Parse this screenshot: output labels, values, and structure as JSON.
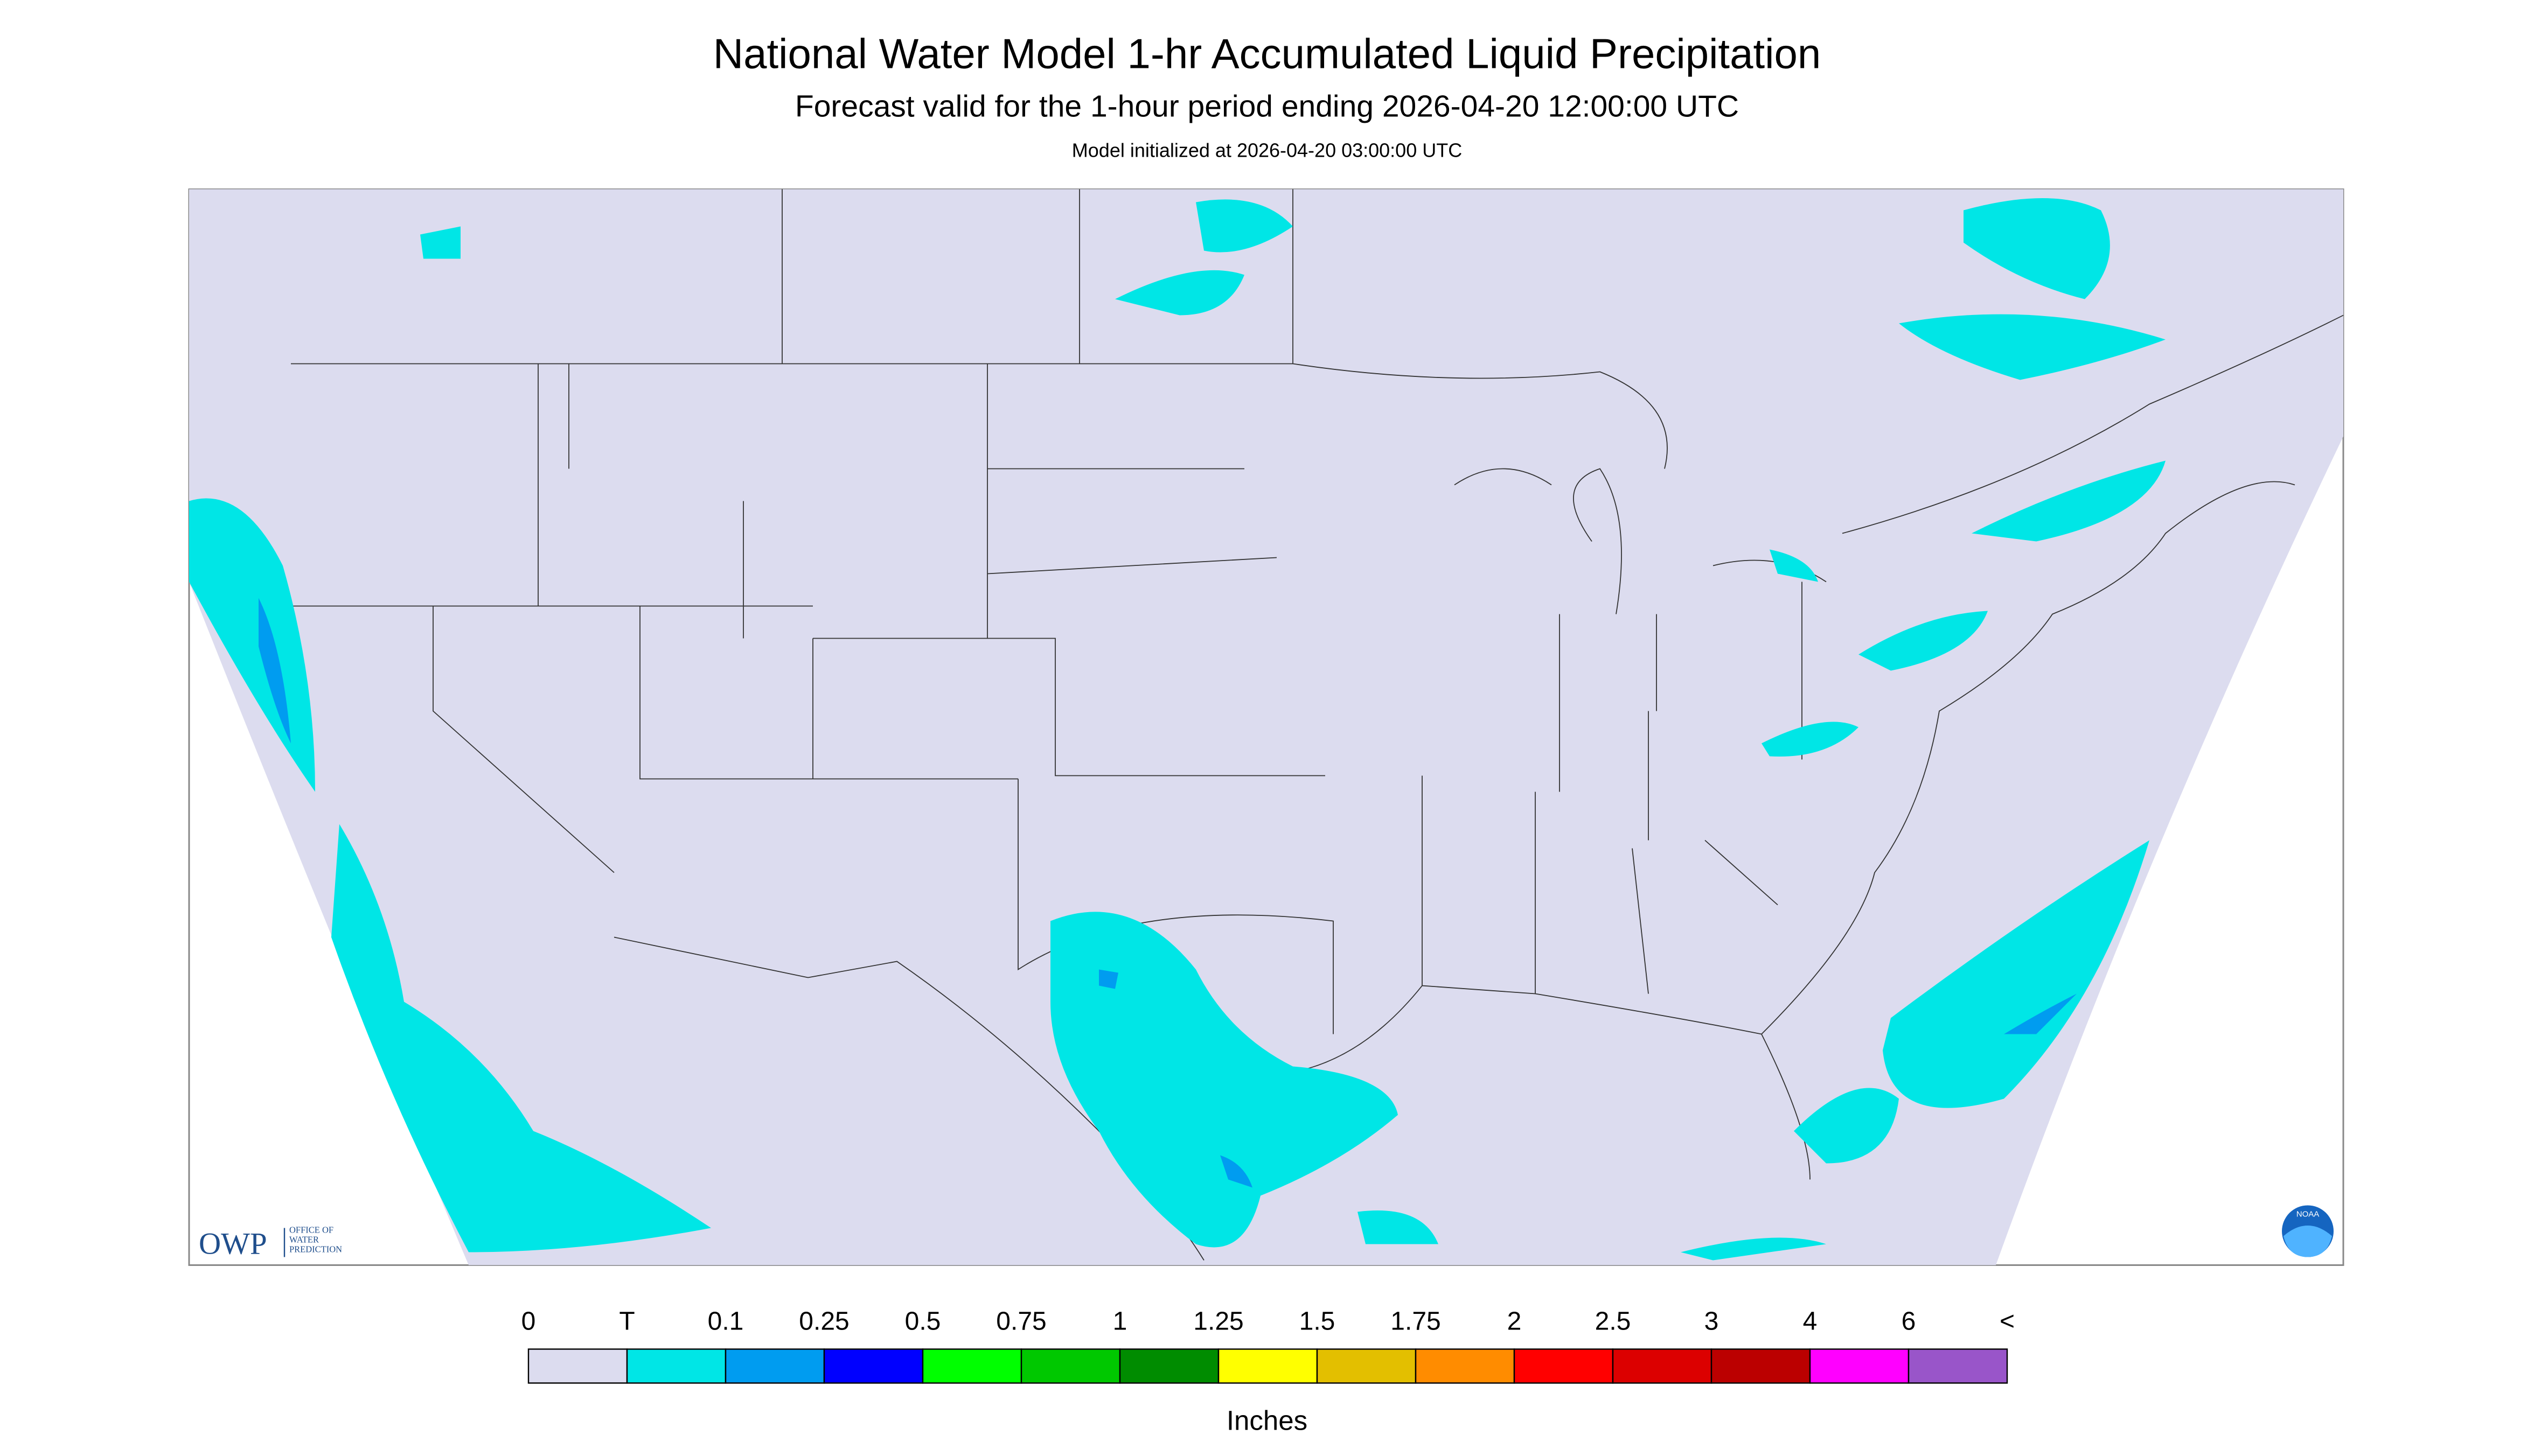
{
  "header": {
    "title": "National Water Model 1-hr Accumulated Liquid Precipitation",
    "subtitle": "Forecast valid for the 1-hour period ending 2026-04-20 12:00:00 UTC",
    "note": "Model initialized at 2026-04-20 03:00:00 UTC"
  },
  "logo": {
    "acronym": "OWP",
    "lines": [
      "OFFICE OF",
      "WATER",
      "PREDICTION"
    ],
    "badge": "NOAA"
  },
  "legend": {
    "labels": [
      "0",
      "T",
      "0.1",
      "0.25",
      "0.5",
      "0.75",
      "1",
      "1.25",
      "1.5",
      "1.75",
      "2",
      "2.5",
      "3",
      "4",
      "6",
      "<"
    ],
    "colors": [
      "#dcdcef",
      "#00e6e6",
      "#009cf0",
      "#0000ff",
      "#00ff00",
      "#00c800",
      "#008c00",
      "#ffff00",
      "#e3bf00",
      "#ff8c00",
      "#ff0000",
      "#dc0000",
      "#bb0000",
      "#ff00ff",
      "#9955c9"
    ],
    "units": "Inches"
  }
}
